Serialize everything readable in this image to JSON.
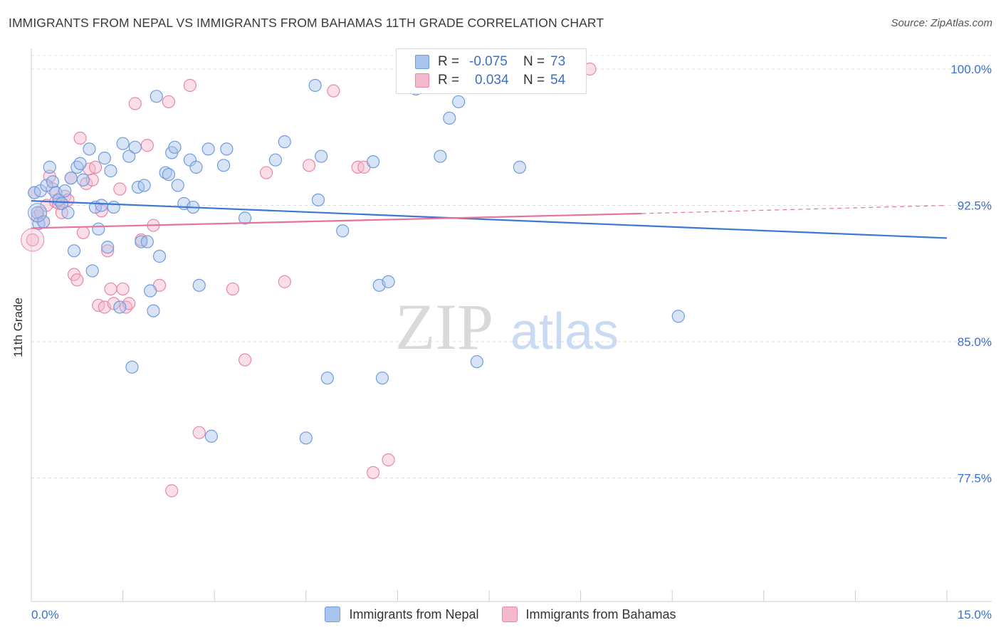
{
  "title": "IMMIGRANTS FROM NEPAL VS IMMIGRANTS FROM BAHAMAS 11TH GRADE CORRELATION CHART",
  "source": "Source: ZipAtlas.com",
  "watermark": {
    "zip": "ZIP",
    "atlas": "atlas"
  },
  "legend": {
    "rows": [
      {
        "r_label": "R =",
        "r_value": "-0.075",
        "n_label": "N =",
        "n_value": "73",
        "color": "#a8c4ec",
        "border": "#6d9ce0"
      },
      {
        "r_label": "R =",
        "r_value": "0.034",
        "n_label": "N =",
        "n_value": "54",
        "color": "#f5b8cc",
        "border": "#e987a8"
      }
    ]
  },
  "bottom_legend": [
    {
      "label": "Immigrants from Nepal",
      "color": "#a8c4ec",
      "border": "#6d9ce0"
    },
    {
      "label": "Immigrants from Bahamas",
      "color": "#f5b8cc",
      "border": "#e987a8"
    }
  ],
  "chart_data": {
    "type": "scatter",
    "title": "IMMIGRANTS FROM NEPAL VS IMMIGRANTS FROM BAHAMAS 11TH GRADE CORRELATION CHART",
    "xlabel": "",
    "ylabel": "11th Grade",
    "xlim": [
      0,
      15
    ],
    "ylim": [
      70,
      101.2
    ],
    "x_tick_labels": [
      "0.0%",
      "15.0%"
    ],
    "y_ticks": [
      77.5,
      85.0,
      92.5,
      100.0
    ],
    "y_tick_labels": [
      "77.5%",
      "85.0%",
      "92.5%",
      "100.0%"
    ],
    "grid": true,
    "legend_position": "top-center",
    "series": [
      {
        "name": "Immigrants from Nepal",
        "color": "#6d9ce0",
        "fill": "#a8c4ec",
        "trend": {
          "x": [
            0,
            15
          ],
          "y": [
            92.75,
            90.7
          ],
          "color": "#3a78d4"
        },
        "points": [
          [
            0.05,
            93.2
          ],
          [
            0.1,
            92.1
          ],
          [
            0.12,
            91.5
          ],
          [
            0.15,
            93.3
          ],
          [
            0.2,
            91.6
          ],
          [
            0.25,
            93.6
          ],
          [
            0.3,
            94.6
          ],
          [
            0.35,
            93.8
          ],
          [
            0.4,
            93.2
          ],
          [
            0.45,
            92.8
          ],
          [
            0.5,
            92.6
          ],
          [
            0.55,
            93.3
          ],
          [
            0.6,
            92.1
          ],
          [
            0.65,
            94.0
          ],
          [
            0.7,
            90.0
          ],
          [
            0.75,
            94.6
          ],
          [
            0.8,
            94.8
          ],
          [
            0.85,
            93.9
          ],
          [
            0.95,
            95.6
          ],
          [
            1.0,
            88.9
          ],
          [
            1.05,
            92.4
          ],
          [
            1.1,
            91.2
          ],
          [
            1.15,
            92.5
          ],
          [
            1.2,
            95.1
          ],
          [
            1.25,
            90.2
          ],
          [
            1.3,
            94.4
          ],
          [
            1.35,
            92.4
          ],
          [
            1.45,
            86.9
          ],
          [
            1.5,
            95.9
          ],
          [
            1.6,
            95.2
          ],
          [
            1.65,
            83.6
          ],
          [
            1.7,
            95.7
          ],
          [
            1.75,
            93.5
          ],
          [
            1.8,
            90.5
          ],
          [
            1.85,
            93.6
          ],
          [
            1.9,
            90.5
          ],
          [
            1.95,
            87.8
          ],
          [
            2.0,
            86.7
          ],
          [
            2.05,
            98.5
          ],
          [
            2.1,
            89.7
          ],
          [
            2.2,
            94.3
          ],
          [
            2.25,
            94.2
          ],
          [
            2.3,
            95.4
          ],
          [
            2.35,
            95.7
          ],
          [
            2.4,
            93.6
          ],
          [
            2.5,
            92.6
          ],
          [
            2.6,
            95.0
          ],
          [
            2.65,
            92.4
          ],
          [
            2.7,
            94.6
          ],
          [
            2.75,
            88.1
          ],
          [
            2.9,
            95.6
          ],
          [
            2.95,
            79.8
          ],
          [
            3.15,
            94.7
          ],
          [
            3.2,
            95.6
          ],
          [
            3.5,
            91.8
          ],
          [
            4.0,
            95.0
          ],
          [
            4.15,
            96.0
          ],
          [
            4.5,
            79.7
          ],
          [
            4.65,
            99.1
          ],
          [
            4.7,
            92.8
          ],
          [
            4.75,
            95.2
          ],
          [
            4.85,
            83.0
          ],
          [
            5.1,
            91.1
          ],
          [
            5.6,
            94.9
          ],
          [
            5.7,
            88.1
          ],
          [
            5.75,
            83.0
          ],
          [
            5.85,
            88.3
          ],
          [
            6.3,
            98.9
          ],
          [
            6.7,
            95.2
          ],
          [
            6.85,
            97.3
          ],
          [
            7.0,
            98.2
          ],
          [
            7.3,
            83.9
          ],
          [
            8.0,
            94.6
          ],
          [
            10.6,
            86.4
          ]
        ]
      },
      {
        "name": "Immigrants from Bahamas",
        "color": "#e987a8",
        "fill": "#f5b8cc",
        "trend": {
          "x": [
            0,
            10.0
          ],
          "y": [
            91.25,
            92.05
          ],
          "color": "#e6739a",
          "dash_to": [
            15,
            92.5
          ]
        },
        "points": [
          [
            0.02,
            90.6
          ],
          [
            0.05,
            93.2
          ],
          [
            0.1,
            91.9
          ],
          [
            0.15,
            92.1
          ],
          [
            0.2,
            91.6
          ],
          [
            0.25,
            92.5
          ],
          [
            0.3,
            94.1
          ],
          [
            0.35,
            93.4
          ],
          [
            0.4,
            92.7
          ],
          [
            0.45,
            92.6
          ],
          [
            0.5,
            92.1
          ],
          [
            0.55,
            93.0
          ],
          [
            0.6,
            92.8
          ],
          [
            0.65,
            94.0
          ],
          [
            0.7,
            88.7
          ],
          [
            0.75,
            88.4
          ],
          [
            0.8,
            96.2
          ],
          [
            0.85,
            91.0
          ],
          [
            0.9,
            93.7
          ],
          [
            0.95,
            94.5
          ],
          [
            1.0,
            93.9
          ],
          [
            1.05,
            94.6
          ],
          [
            1.1,
            87.0
          ],
          [
            1.15,
            92.2
          ],
          [
            1.2,
            86.9
          ],
          [
            1.25,
            90.0
          ],
          [
            1.3,
            87.9
          ],
          [
            1.35,
            87.1
          ],
          [
            1.45,
            93.4
          ],
          [
            1.5,
            87.9
          ],
          [
            1.55,
            86.9
          ],
          [
            1.6,
            87.1
          ],
          [
            1.7,
            98.1
          ],
          [
            1.8,
            90.6
          ],
          [
            1.9,
            95.8
          ],
          [
            2.0,
            91.4
          ],
          [
            2.1,
            88.1
          ],
          [
            2.25,
            98.2
          ],
          [
            2.3,
            76.8
          ],
          [
            2.6,
            99.1
          ],
          [
            2.75,
            80.0
          ],
          [
            3.3,
            87.9
          ],
          [
            3.5,
            84.0
          ],
          [
            3.85,
            94.3
          ],
          [
            4.15,
            88.3
          ],
          [
            4.55,
            94.7
          ],
          [
            4.95,
            98.8
          ],
          [
            5.35,
            94.6
          ],
          [
            5.45,
            94.6
          ],
          [
            5.6,
            77.8
          ],
          [
            5.85,
            78.5
          ],
          [
            9.15,
            100.0
          ]
        ]
      }
    ]
  }
}
